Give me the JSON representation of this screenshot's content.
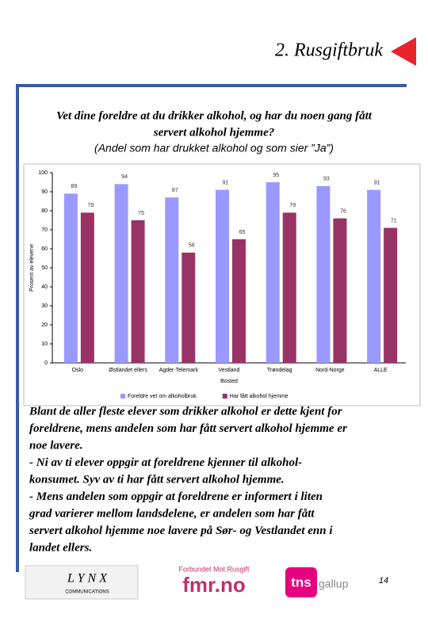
{
  "header": {
    "title": "2. Rusgiftbruk"
  },
  "question": {
    "lines": [
      "Vet dine foreldre at du drikker alkohol, og har du noen gang fått",
      "servert alkohol hjemme?"
    ],
    "note": "(Andel som har drukket alkohol og som sier ”Ja”)"
  },
  "chart_data": {
    "type": "bar",
    "categories": [
      "Oslo",
      "Østlandet ellers",
      "Agder-Telemark",
      "Vestland",
      "Trøndelag",
      "Nord-Norge",
      "ALLE"
    ],
    "series": [
      {
        "name": "Foreldre vet om alkoholbruk",
        "color": "#9999ff",
        "values": [
          89,
          94,
          87,
          91,
          95,
          93,
          91
        ]
      },
      {
        "name": "Har fått alkohol hjemme",
        "color": "#993366",
        "values": [
          79,
          75,
          58,
          65,
          79,
          76,
          71
        ]
      }
    ],
    "ylim": [
      0,
      100
    ],
    "yticks": [
      0,
      10,
      20,
      30,
      40,
      50,
      60,
      70,
      80,
      90,
      100
    ],
    "ylabel": "Prosent av elevene",
    "xlabel": "Bosted",
    "grid": false,
    "legend": "bottom"
  },
  "body": {
    "lines": [
      "Blant de aller fleste elever som drikker alkohol er dette kjent for",
      "foreldrene, mens andelen som har fått servert alkohol hjemme er",
      "noe lavere.",
      "- Ni av ti elever oppgir at foreldrene kjenner til alkohol-",
      "konsumet. Syv av ti har fått servert alkohol hjemme.",
      "- Mens andelen som oppgir at foreldrene er informert i liten",
      "grad varierer mellom landsdelene, er andelen som har fått",
      "servert alkohol hjemme noe lavere på Sør- og Vestlandet enn i",
      "landet ellers."
    ]
  },
  "footer": {
    "lynx": "L Y N X",
    "lynx_sub": "COMMUNICATIONS",
    "fmr_top": "Forbundet Mot Rusgift",
    "fmr": "fmr.no",
    "tns": "tns",
    "gallup": "gallup",
    "page": "14"
  }
}
